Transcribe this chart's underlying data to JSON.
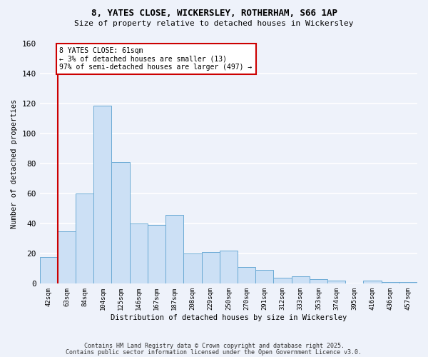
{
  "title_line1": "8, YATES CLOSE, WICKERSLEY, ROTHERHAM, S66 1AP",
  "title_line2": "Size of property relative to detached houses in Wickersley",
  "xlabel": "Distribution of detached houses by size in Wickersley",
  "ylabel": "Number of detached properties",
  "bar_labels": [
    "42sqm",
    "63sqm",
    "84sqm",
    "104sqm",
    "125sqm",
    "146sqm",
    "167sqm",
    "187sqm",
    "208sqm",
    "229sqm",
    "250sqm",
    "270sqm",
    "291sqm",
    "312sqm",
    "333sqm",
    "353sqm",
    "374sqm",
    "395sqm",
    "416sqm",
    "436sqm",
    "457sqm"
  ],
  "bar_values": [
    18,
    35,
    60,
    119,
    81,
    40,
    39,
    46,
    20,
    21,
    22,
    11,
    9,
    4,
    5,
    3,
    2,
    0,
    2,
    1,
    1
  ],
  "bar_color": "#cce0f5",
  "bar_edge_color": "#6aaad4",
  "annotation_text": "8 YATES CLOSE: 61sqm\n← 3% of detached houses are smaller (13)\n97% of semi-detached houses are larger (497) →",
  "annotation_box_color": "#ffffff",
  "annotation_box_edge_color": "#cc0000",
  "vline_color": "#cc0000",
  "ylim": [
    0,
    160
  ],
  "yticks": [
    0,
    20,
    40,
    60,
    80,
    100,
    120,
    140,
    160
  ],
  "background_color": "#eef2fa",
  "grid_color": "#ffffff",
  "footer_line1": "Contains HM Land Registry data © Crown copyright and database right 2025.",
  "footer_line2": "Contains public sector information licensed under the Open Government Licence v3.0."
}
